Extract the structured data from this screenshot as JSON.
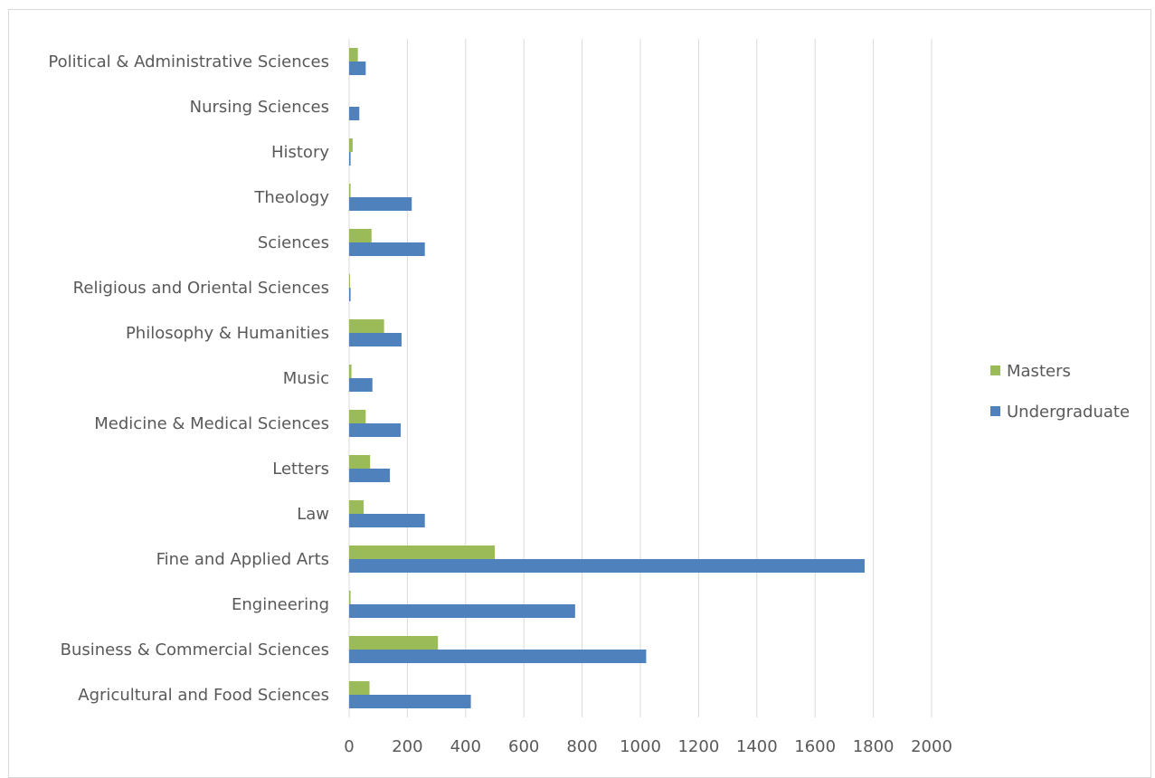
{
  "chart_data": {
    "type": "bar",
    "orientation": "horizontal",
    "categories": [
      "Agricultural and Food Sciences",
      "Business & Commercial Sciences",
      "Engineering",
      "Fine and Applied Arts",
      "Law",
      "Letters",
      "Medicine & Medical Sciences",
      "Music",
      "Philosophy & Humanities",
      "Religious and Oriental Sciences",
      "Sciences",
      "Theology",
      "History",
      "Nursing Sciences",
      "Political & Administrative Sciences"
    ],
    "series": [
      {
        "name": "Masters",
        "color": "#9bbb59",
        "values": [
          70,
          305,
          5,
          500,
          50,
          72,
          57,
          8,
          120,
          3,
          77,
          5,
          12,
          0,
          30
        ]
      },
      {
        "name": "Undergraduate",
        "color": "#4f81bd",
        "values": [
          418,
          1020,
          776,
          1770,
          260,
          140,
          177,
          80,
          180,
          5,
          260,
          215,
          5,
          35,
          57
        ]
      }
    ],
    "xlim": [
      0,
      2000
    ],
    "xticks": [
      "0",
      "200",
      "400",
      "600",
      "800",
      "1000",
      "1200",
      "1400",
      "1600",
      "1800",
      "2000"
    ],
    "title": "",
    "xlabel": "",
    "ylabel": "",
    "grid": "vertical",
    "legend": {
      "position": "right",
      "entries": [
        "Masters",
        "Undergraduate"
      ]
    }
  }
}
